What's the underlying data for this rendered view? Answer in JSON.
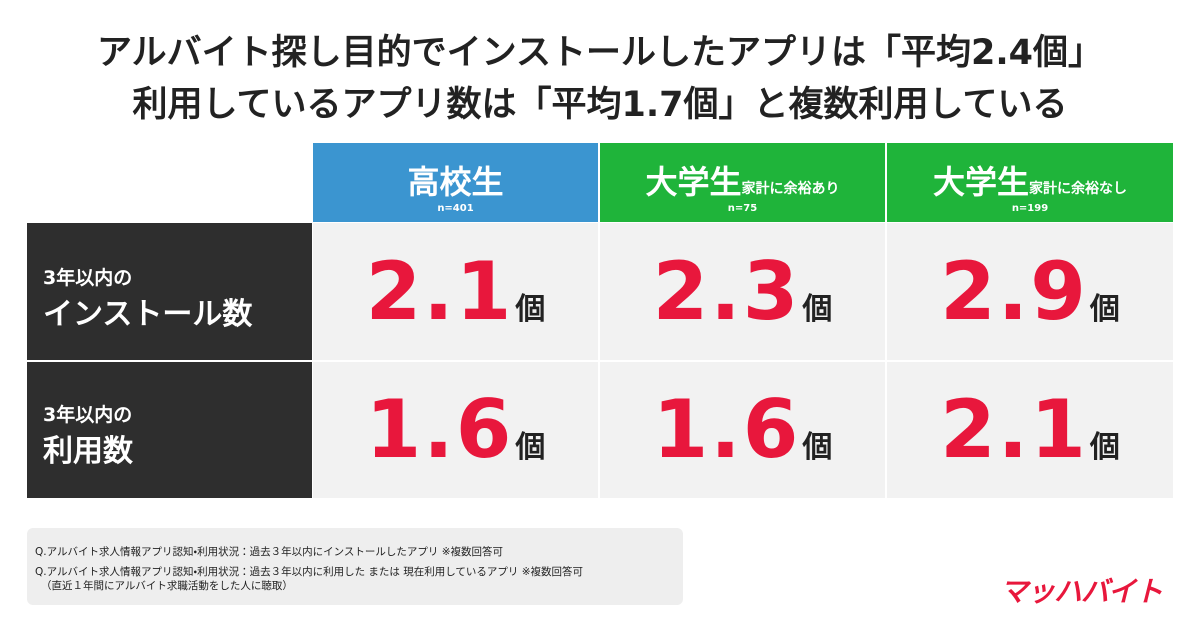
{
  "title": {
    "line1": "アルバイト探し目的でインストールしたアプリは「平均2.4個」",
    "line2": "利用しているアプリ数は「平均1.7個」と複数利用している"
  },
  "table": {
    "columns": [
      {
        "name": "高校生",
        "n": "n=401"
      },
      {
        "name": "大学生",
        "note": "家計に余裕あり",
        "n": "n=75"
      },
      {
        "name": "大学生",
        "note": "家計に余裕なし",
        "n": "n=199"
      }
    ],
    "rows": [
      {
        "label_top": "3年以内の",
        "label_main": "インストール数",
        "cells": [
          {
            "value": "2.1",
            "unit": "個"
          },
          {
            "value": "2.3",
            "unit": "個"
          },
          {
            "value": "2.9",
            "unit": "個"
          }
        ]
      },
      {
        "label_top": "3年以内の",
        "label_main": "利用数",
        "cells": [
          {
            "value": "1.6",
            "unit": "個"
          },
          {
            "value": "1.6",
            "unit": "個"
          },
          {
            "value": "2.1",
            "unit": "個"
          }
        ]
      }
    ]
  },
  "footnote": {
    "lines": [
      "Q.アルバイト求人情報アプリ認知・利用状況：過去３年以内にインストールしたアプリ ※複数回答可",
      "Q.アルバイト求人情報アプリ認知・利用状況：過去３年以内に利用した または 現在利用しているアプリ ※複数回答可",
      "（直近１年間にアルバイト求職活動をした人に聴取）"
    ]
  },
  "logo": "マッハバイト"
}
